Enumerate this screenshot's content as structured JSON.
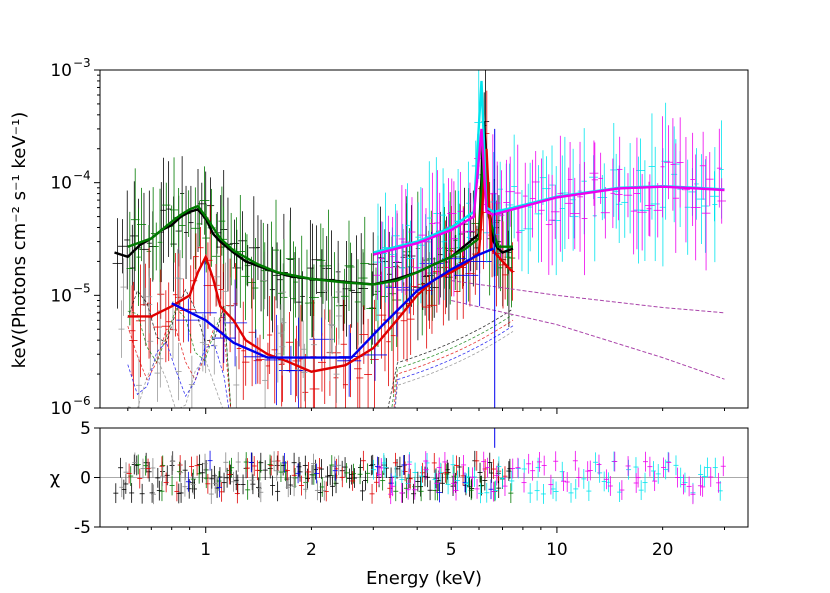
{
  "chart_data": [
    {
      "type": "line",
      "panel": "spectrum",
      "xscale": "log",
      "yscale": "log",
      "xlim": [
        0.5,
        35
      ],
      "ylim": [
        1e-06,
        0.001
      ],
      "ylabel": "keV(Photons cm⁻² s⁻¹ keV⁻¹)",
      "ytick_labels": [
        {
          "value": 1e-06,
          "base": "10",
          "exp": "−6"
        },
        {
          "value": 1e-05,
          "base": "10",
          "exp": "−5"
        },
        {
          "value": 0.0001,
          "base": "10",
          "exp": "−4"
        },
        {
          "value": 0.001,
          "base": "10",
          "exp": "−3"
        }
      ],
      "series": [
        {
          "name": "black-data-model",
          "color": "#000000",
          "x": [
            0.55,
            0.6,
            0.65,
            0.7,
            0.75,
            0.8,
            0.85,
            0.9,
            0.95,
            1.0,
            1.05,
            1.1,
            1.2,
            1.3,
            1.5,
            1.7,
            2.0,
            2.3,
            2.6,
            3.0,
            3.5,
            4.0,
            4.5,
            5.0,
            5.5,
            6.0,
            6.2,
            6.4,
            6.6,
            6.8,
            7.0,
            7.5
          ],
          "y": [
            2.4e-05,
            2.2e-05,
            2.8e-05,
            3.2e-05,
            3.8e-05,
            4.2e-05,
            5e-05,
            5.5e-05,
            5.8e-05,
            4.8e-05,
            3.5e-05,
            3e-05,
            2.4e-05,
            2e-05,
            1.7e-05,
            1.5e-05,
            1.4e-05,
            1.35e-05,
            1.3e-05,
            1.25e-05,
            1.4e-05,
            1.6e-05,
            1.9e-05,
            2.2e-05,
            2.8e-05,
            3.5e-05,
            0.00035,
            6e-05,
            3e-05,
            2.6e-05,
            2.4e-05,
            2.6e-05
          ]
        },
        {
          "name": "green-data-model",
          "color": "#007a00",
          "x": [
            0.6,
            0.7,
            0.8,
            0.85,
            0.9,
            0.95,
            1.0,
            1.1,
            1.2,
            1.4,
            1.6,
            2.0,
            2.5,
            3.0,
            3.5,
            4.0,
            4.5,
            5.0,
            5.5,
            6.0,
            6.2,
            6.4,
            6.8,
            7.5
          ],
          "y": [
            2.7e-05,
            3.2e-05,
            4.5e-05,
            5.2e-05,
            5.8e-05,
            6.2e-05,
            5e-05,
            3.2e-05,
            2.5e-05,
            1.9e-05,
            1.6e-05,
            1.4e-05,
            1.3e-05,
            1.25e-05,
            1.35e-05,
            1.6e-05,
            1.9e-05,
            2.2e-05,
            2.6e-05,
            3.2e-05,
            0.0002,
            5e-05,
            2.7e-05,
            2.7e-05
          ]
        },
        {
          "name": "red-data-model",
          "color": "#e00000",
          "x": [
            0.6,
            0.7,
            0.8,
            0.9,
            0.95,
            1.0,
            1.05,
            1.1,
            1.2,
            1.3,
            1.5,
            1.7,
            2.0,
            2.5,
            3.0,
            3.5,
            4.0,
            4.5,
            5.0,
            5.5,
            6.0,
            6.3,
            6.5,
            7.0,
            7.5
          ],
          "y": [
            6.5e-06,
            6.5e-06,
            8e-06,
            1e-05,
            1.6e-05,
            2.2e-05,
            1.4e-05,
            8e-06,
            6e-06,
            4e-06,
            3e-06,
            2.6e-06,
            2.1e-06,
            2.4e-06,
            3.4e-06,
            6e-06,
            1e-05,
            1.4e-05,
            1.6e-05,
            1.9e-05,
            2.4e-05,
            0.0002,
            2.6e-05,
            2e-05,
            1.6e-05
          ]
        },
        {
          "name": "blue-data-model",
          "color": "#0000ee",
          "x": [
            0.8,
            1.0,
            1.2,
            1.5,
            2.0,
            2.6,
            3.2,
            4.0,
            5.0,
            6.0,
            6.6
          ],
          "y": [
            8.5e-06,
            6e-06,
            3.8e-06,
            2.8e-06,
            2.8e-06,
            2.8e-06,
            5.5e-06,
            1.1e-05,
            1.7e-05,
            2.3e-05,
            2.6e-05
          ]
        },
        {
          "name": "cyan-data-model",
          "color": "#00e5ee",
          "x": [
            3.0,
            4.0,
            5.0,
            5.8,
            6.1,
            6.3,
            6.6,
            7.5,
            10,
            15,
            20,
            25,
            30
          ],
          "y": [
            2.4e-05,
            3e-05,
            4e-05,
            5.5e-05,
            0.0008,
            6e-05,
            5.5e-05,
            6e-05,
            7.5e-05,
            9e-05,
            9.3e-05,
            9e-05,
            8.7e-05
          ]
        },
        {
          "name": "magenta-data-model",
          "color": "#ee00ee",
          "x": [
            3.0,
            4.0,
            5.0,
            5.8,
            6.1,
            6.3,
            6.6,
            7.5,
            10,
            15,
            20,
            25,
            30
          ],
          "y": [
            2.3e-05,
            2.9e-05,
            3.8e-05,
            5e-05,
            0.0003,
            5.5e-05,
            5.2e-05,
            5.8e-05,
            7.4e-05,
            8.9e-05,
            9.2e-05,
            8.9e-05,
            8.6e-05
          ]
        },
        {
          "name": "powerlaw-component-upper",
          "color": "#aa44aa",
          "dashed": true,
          "x": [
            5.0,
            10,
            20,
            30
          ],
          "y": [
            1.35e-05,
            1e-05,
            7.8e-06,
            7e-06
          ]
        },
        {
          "name": "powerlaw-component-lower",
          "color": "#aa44aa",
          "dashed": true,
          "x": [
            5.0,
            10,
            20,
            30
          ],
          "y": [
            9e-06,
            5.5e-06,
            2.8e-06,
            1.8e-06
          ]
        }
      ]
    },
    {
      "type": "scatter",
      "panel": "residuals",
      "xscale": "log",
      "xlim": [
        0.5,
        35
      ],
      "ylim": [
        -5,
        5
      ],
      "xlabel": "Energy (keV)",
      "ylabel": "χ",
      "ytick_labels": [
        {
          "value": 5,
          "label": "5"
        },
        {
          "value": 0,
          "label": "0"
        },
        {
          "value": -5,
          "label": "-5"
        }
      ],
      "xtick_labels": [
        {
          "value": 1,
          "label": "1"
        },
        {
          "value": 2,
          "label": "2"
        },
        {
          "value": 5,
          "label": "5"
        },
        {
          "value": 10,
          "label": "10"
        },
        {
          "value": 20,
          "label": "20"
        }
      ],
      "zero_line": 0
    }
  ]
}
